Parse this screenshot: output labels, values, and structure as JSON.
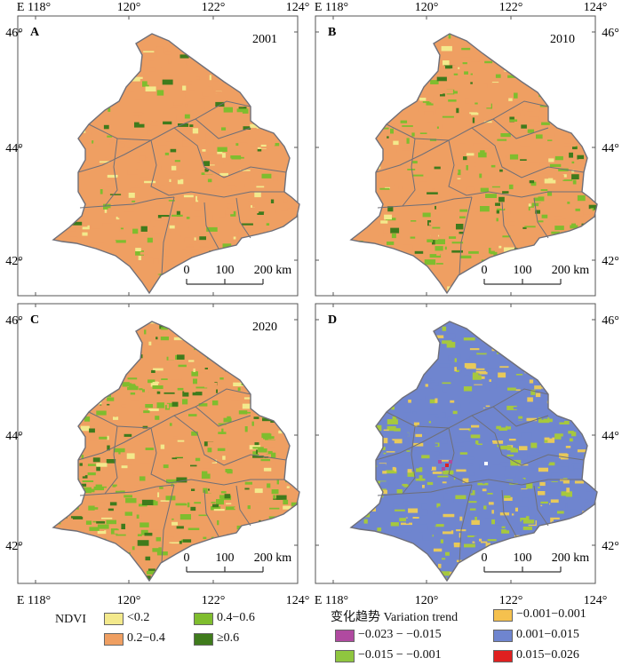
{
  "panels": [
    {
      "letter": "A",
      "year": "2001",
      "kind": "ndvi",
      "palette": [
        "#ef9f62",
        "#ef9f62",
        "#ef9f62",
        "#ef9f62",
        "#ef9f62",
        "#ef9f62",
        "#ef9f62",
        "#ef9f62",
        "#7fbd2e",
        "#f3e98c",
        "#3f7b1c"
      ]
    },
    {
      "letter": "B",
      "year": "2010",
      "kind": "ndvi",
      "palette": [
        "#ef9f62",
        "#ef9f62",
        "#ef9f62",
        "#ef9f62",
        "#ef9f62",
        "#ef9f62",
        "#7fbd2e",
        "#7fbd2e",
        "#7fbd2e",
        "#f3e98c",
        "#3f7b1c"
      ]
    },
    {
      "letter": "C",
      "year": "2020",
      "kind": "ndvi",
      "palette": [
        "#ef9f62",
        "#ef9f62",
        "#ef9f62",
        "#ef9f62",
        "#7fbd2e",
        "#7fbd2e",
        "#7fbd2e",
        "#7fbd2e",
        "#3f7b1c",
        "#3f7b1c",
        "#f3e98c"
      ]
    },
    {
      "letter": "D",
      "year": "",
      "kind": "trend",
      "palette": [
        "#6f85cf",
        "#6f85cf",
        "#6f85cf",
        "#6f85cf",
        "#6f85cf",
        "#6f85cf",
        "#a6c83e",
        "#a6c83e",
        "#e8c95a",
        "#e8c95a",
        "#6f85cf"
      ]
    }
  ],
  "axes": {
    "x_ticks": [
      "E 118°",
      "120°",
      "122°",
      "124°"
    ],
    "y_ticks_top": [
      "46°",
      "44°",
      "42°"
    ],
    "y_ticks_bottom": [
      "46°",
      "44°",
      "42°"
    ]
  },
  "scalebar": {
    "labels": [
      "0",
      "100",
      "200 km"
    ]
  },
  "legend_ndvi": {
    "title": "NDVI",
    "items": [
      {
        "label": "<0.2",
        "color": "#f3e98c"
      },
      {
        "label": "0.2−0.4",
        "color": "#ef9f62"
      },
      {
        "label": "0.4−0.6",
        "color": "#7fbd2e"
      },
      {
        "label": "≥0.6",
        "color": "#3f7b1c"
      }
    ]
  },
  "legend_trend": {
    "title": "变化趋势 Variation trend",
    "items": [
      {
        "label": "−0.023 − −0.015",
        "color": "#b04aa0"
      },
      {
        "label": "−0.015 − −0.001",
        "color": "#8fc63f"
      },
      {
        "label": "−0.001−0.001",
        "color": "#f5c14e"
      },
      {
        "label": "0.001−0.015",
        "color": "#6f85cf"
      },
      {
        "label": "0.015−0.026",
        "color": "#e02020"
      }
    ]
  },
  "colors": {
    "boundary": "#6f6f78",
    "frame": "#555555"
  }
}
